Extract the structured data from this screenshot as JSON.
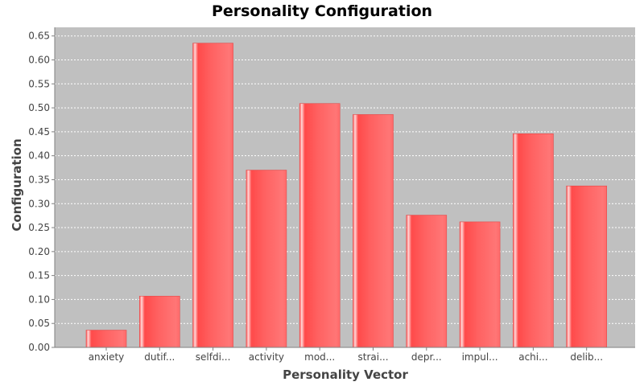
{
  "chart_data": {
    "type": "bar",
    "title": "Personality Configuration",
    "xlabel": "Personality Vector",
    "ylabel": "Configuration",
    "categories": [
      "anxiety",
      "dutif...",
      "selfdi...",
      "activity",
      "mod...",
      "strai...",
      "depr...",
      "impul...",
      "achi...",
      "delib..."
    ],
    "values": [
      0.036,
      0.107,
      0.635,
      0.37,
      0.509,
      0.486,
      0.276,
      0.262,
      0.446,
      0.337
    ],
    "yticks": [
      "0.00",
      "0.05",
      "0.10",
      "0.15",
      "0.20",
      "0.25",
      "0.30",
      "0.35",
      "0.40",
      "0.45",
      "0.50",
      "0.55",
      "0.60",
      "0.65"
    ],
    "ylim": [
      0,
      0.668
    ],
    "grid": true,
    "legend": "none",
    "colors": {
      "bar": "#ff5555",
      "plot_background": "#c0c0c0",
      "gridline": "#ffffff"
    }
  }
}
